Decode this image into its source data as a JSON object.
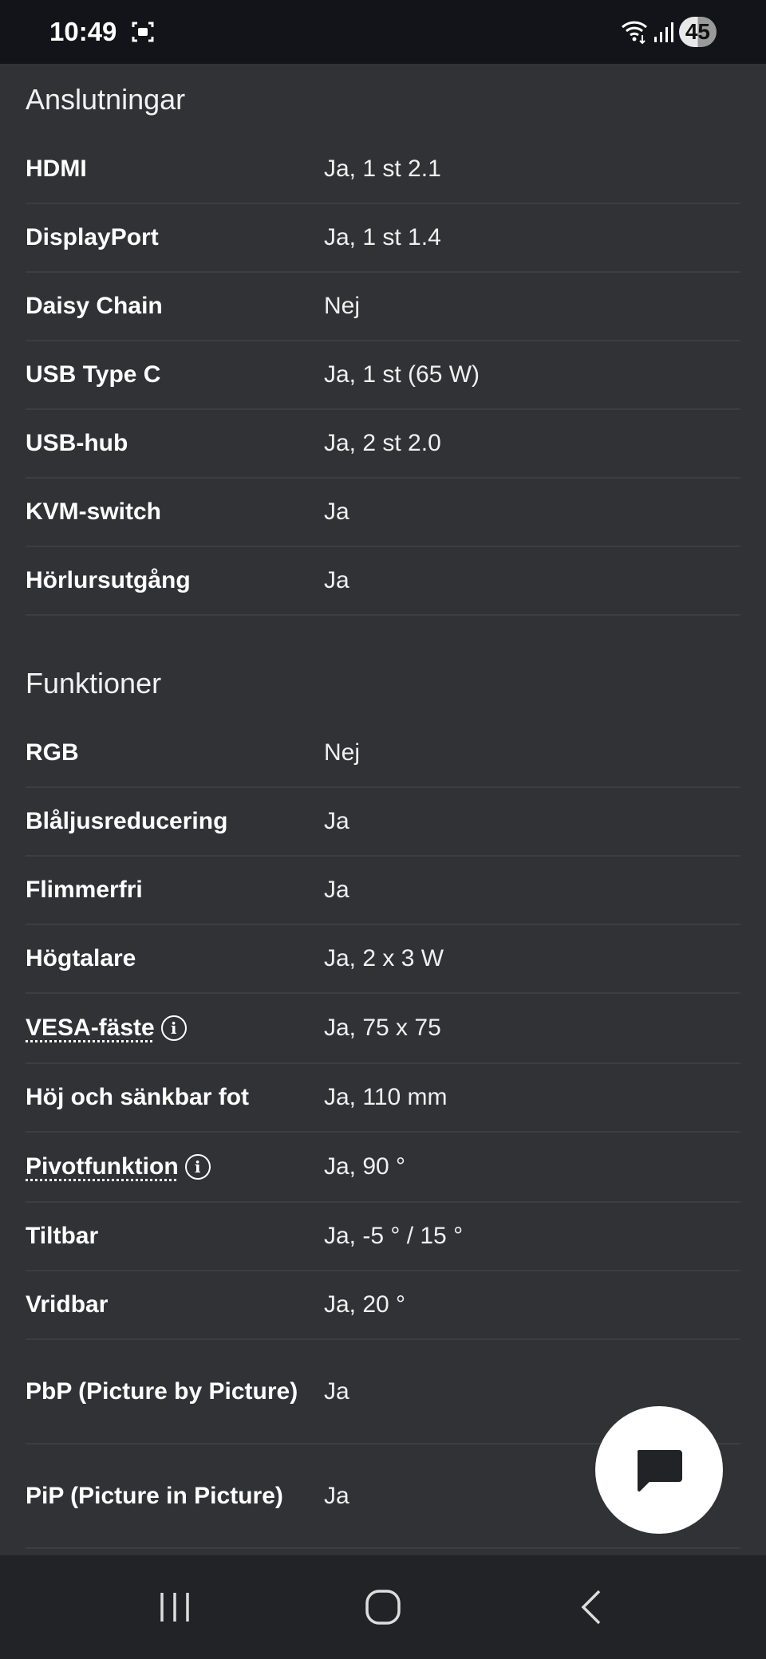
{
  "status_bar": {
    "time": "10:49",
    "battery": "45"
  },
  "sections": [
    {
      "title": "Anslutningar",
      "rows": [
        {
          "label": "HDMI",
          "value": "Ja, 1 st 2.1"
        },
        {
          "label": "DisplayPort",
          "value": "Ja, 1 st 1.4"
        },
        {
          "label": "Daisy Chain",
          "value": "Nej"
        },
        {
          "label": "USB Type C",
          "value": "Ja, 1 st (65 W)"
        },
        {
          "label": "USB-hub",
          "value": "Ja, 2 st 2.0"
        },
        {
          "label": "KVM-switch",
          "value": "Ja"
        },
        {
          "label": "Hörlursutgång",
          "value": "Ja"
        }
      ]
    },
    {
      "title": "Funktioner",
      "rows": [
        {
          "label": "RGB",
          "value": "Nej"
        },
        {
          "label": "Blåljusreducering",
          "value": "Ja"
        },
        {
          "label": "Flimmerfri",
          "value": "Ja"
        },
        {
          "label": "Högtalare",
          "value": "Ja, 2 x 3 W"
        },
        {
          "label": "VESA-fäste",
          "value": "Ja, 75 x 75",
          "info": true
        },
        {
          "label": "Höj och sänkbar fot",
          "value": "Ja, 110 mm"
        },
        {
          "label": "Pivotfunktion",
          "value": "Ja, 90 °",
          "info": true
        },
        {
          "label": "Tiltbar",
          "value": "Ja, -5 ° / 15 °"
        },
        {
          "label": "Vridbar",
          "value": "Ja, 20 °"
        },
        {
          "label": "PbP (Picture by Picture)",
          "value": "Ja"
        },
        {
          "label": "PiP (Picture in Picture)",
          "value": "Ja"
        }
      ]
    }
  ],
  "icons": {
    "info": "i",
    "chat": "chat-bubble-icon"
  }
}
